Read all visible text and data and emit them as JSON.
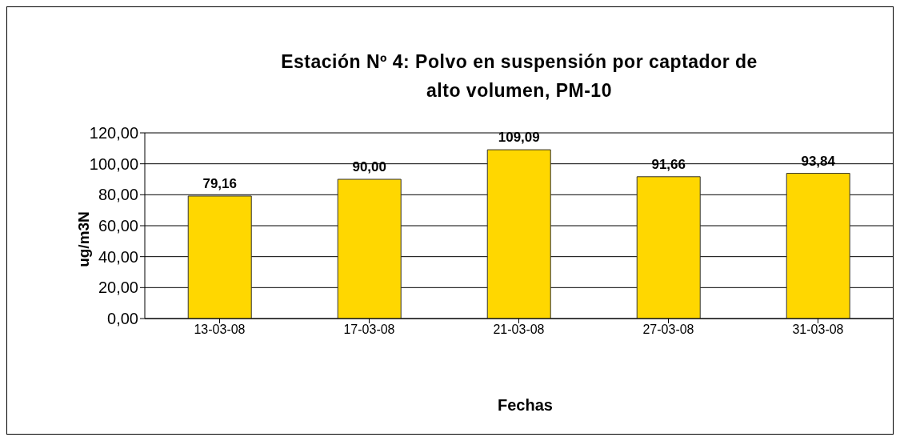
{
  "chart_data": {
    "type": "bar",
    "title": "Estación Nº 4: Polvo en suspensión por captador de alto volumen, PM-10",
    "xlabel": "Fechas",
    "ylabel": "ug/m3N",
    "categories": [
      "13-03-08",
      "17-03-08",
      "21-03-08",
      "27-03-08",
      "31-03-08"
    ],
    "values": [
      79.16,
      90.0,
      109.09,
      91.66,
      93.84
    ],
    "value_labels": [
      "79,16",
      "90,00",
      "109,09",
      "91,66",
      "93,84"
    ],
    "color": "#ffd700",
    "ylim": [
      0,
      120
    ],
    "yticks": [
      {
        "value": 0,
        "label": "0,00"
      },
      {
        "value": 20,
        "label": "20,00"
      },
      {
        "value": 40,
        "label": "40,00"
      },
      {
        "value": 60,
        "label": "60,00"
      },
      {
        "value": 80,
        "label": "80,00"
      },
      {
        "value": 100,
        "label": "100,00"
      },
      {
        "value": 120,
        "label": "120,00"
      }
    ],
    "grid": "y"
  }
}
